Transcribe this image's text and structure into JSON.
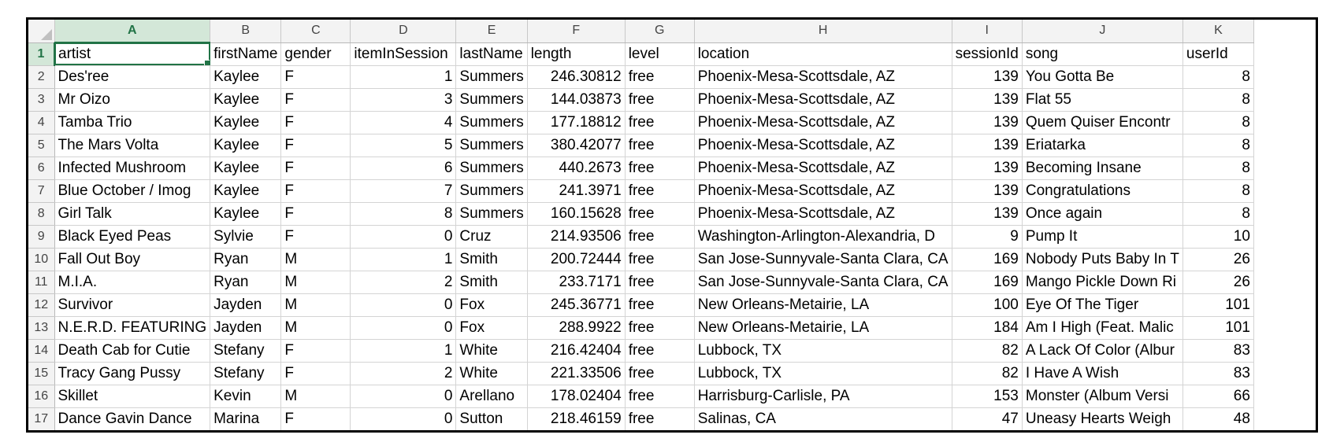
{
  "columns": [
    "A",
    "B",
    "C",
    "D",
    "E",
    "F",
    "G",
    "H",
    "I",
    "J",
    "K"
  ],
  "active_column": "A",
  "active_row": "1",
  "rows": [
    {
      "num": "1",
      "cells": [
        "artist",
        "firstName",
        "gender",
        "itemInSession",
        "lastName",
        "length",
        "level",
        "location",
        "sessionId",
        "song",
        "userId"
      ]
    },
    {
      "num": "2",
      "cells": [
        "Des'ree",
        "Kaylee",
        "F",
        "1",
        "Summers",
        "246.30812",
        "free",
        "Phoenix-Mesa-Scottsdale, AZ",
        "139",
        "You Gotta Be",
        "8"
      ]
    },
    {
      "num": "3",
      "cells": [
        "Mr Oizo",
        "Kaylee",
        "F",
        "3",
        "Summers",
        "144.03873",
        "free",
        "Phoenix-Mesa-Scottsdale, AZ",
        "139",
        "Flat 55",
        "8"
      ]
    },
    {
      "num": "4",
      "cells": [
        "Tamba Trio",
        "Kaylee",
        "F",
        "4",
        "Summers",
        "177.18812",
        "free",
        "Phoenix-Mesa-Scottsdale, AZ",
        "139",
        "Quem Quiser Encontr",
        "8"
      ]
    },
    {
      "num": "5",
      "cells": [
        "The Mars Volta",
        "Kaylee",
        "F",
        "5",
        "Summers",
        "380.42077",
        "free",
        "Phoenix-Mesa-Scottsdale, AZ",
        "139",
        "Eriatarka",
        "8"
      ]
    },
    {
      "num": "6",
      "cells": [
        "Infected Mushroom",
        "Kaylee",
        "F",
        "6",
        "Summers",
        "440.2673",
        "free",
        "Phoenix-Mesa-Scottsdale, AZ",
        "139",
        "Becoming Insane",
        "8"
      ]
    },
    {
      "num": "7",
      "cells": [
        "Blue October / Imog",
        "Kaylee",
        "F",
        "7",
        "Summers",
        "241.3971",
        "free",
        "Phoenix-Mesa-Scottsdale, AZ",
        "139",
        "Congratulations",
        "8"
      ]
    },
    {
      "num": "8",
      "cells": [
        "Girl Talk",
        "Kaylee",
        "F",
        "8",
        "Summers",
        "160.15628",
        "free",
        "Phoenix-Mesa-Scottsdale, AZ",
        "139",
        "Once again",
        "8"
      ]
    },
    {
      "num": "9",
      "cells": [
        "Black Eyed Peas",
        "Sylvie",
        "F",
        "0",
        "Cruz",
        "214.93506",
        "free",
        "Washington-Arlington-Alexandria, D",
        "9",
        "Pump It",
        "10"
      ]
    },
    {
      "num": "10",
      "cells": [
        "Fall Out Boy",
        "Ryan",
        "M",
        "1",
        "Smith",
        "200.72444",
        "free",
        "San Jose-Sunnyvale-Santa Clara, CA",
        "169",
        "Nobody Puts Baby In T",
        "26"
      ]
    },
    {
      "num": "11",
      "cells": [
        "M.I.A.",
        "Ryan",
        "M",
        "2",
        "Smith",
        "233.7171",
        "free",
        "San Jose-Sunnyvale-Santa Clara, CA",
        "169",
        "Mango Pickle Down Ri",
        "26"
      ]
    },
    {
      "num": "12",
      "cells": [
        "Survivor",
        "Jayden",
        "M",
        "0",
        "Fox",
        "245.36771",
        "free",
        "New Orleans-Metairie, LA",
        "100",
        "Eye Of The Tiger",
        "101"
      ]
    },
    {
      "num": "13",
      "cells": [
        "N.E.R.D. FEATURING",
        "Jayden",
        "M",
        "0",
        "Fox",
        "288.9922",
        "free",
        "New Orleans-Metairie, LA",
        "184",
        "Am I High (Feat. Malic",
        "101"
      ]
    },
    {
      "num": "14",
      "cells": [
        "Death Cab for Cutie",
        "Stefany",
        "F",
        "1",
        "White",
        "216.42404",
        "free",
        "Lubbock, TX",
        "82",
        "A Lack Of Color (Albur",
        "83"
      ]
    },
    {
      "num": "15",
      "cells": [
        "Tracy Gang Pussy",
        "Stefany",
        "F",
        "2",
        "White",
        "221.33506",
        "free",
        "Lubbock, TX",
        "82",
        "I Have A Wish",
        "83"
      ]
    },
    {
      "num": "16",
      "cells": [
        "Skillet",
        "Kevin",
        "M",
        "0",
        "Arellano",
        "178.02404",
        "free",
        "Harrisburg-Carlisle, PA",
        "153",
        "Monster (Album Versi",
        "66"
      ]
    },
    {
      "num": "17",
      "cells": [
        "Dance Gavin Dance",
        "Marina",
        "F",
        "0",
        "Sutton",
        "218.46159",
        "free",
        "Salinas, CA",
        "47",
        "Uneasy Hearts Weigh",
        "48"
      ]
    }
  ]
}
